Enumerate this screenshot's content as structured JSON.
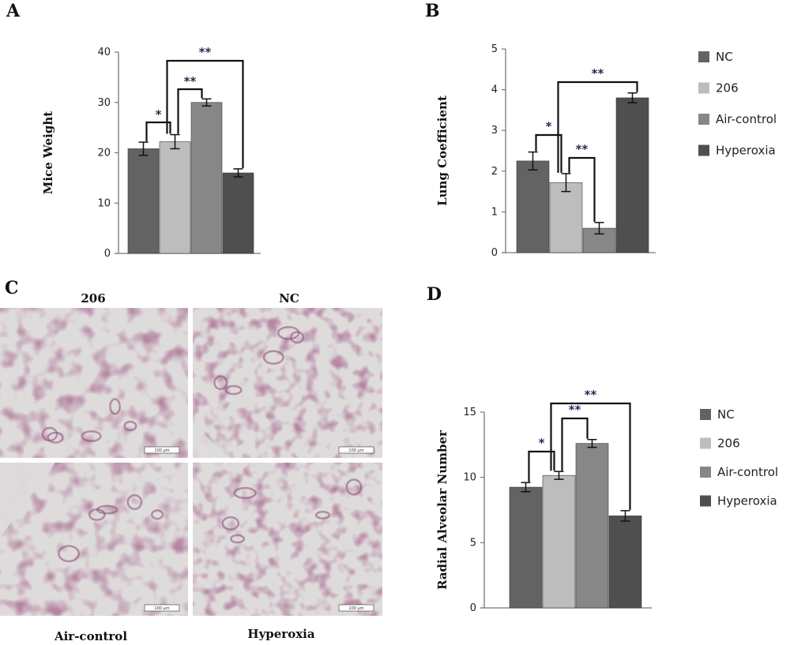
{
  "figure": {
    "panels": {
      "a": "A",
      "b": "B",
      "c": "C",
      "d": "D"
    }
  },
  "legend": {
    "items": [
      {
        "label": "NC",
        "color": "#636363"
      },
      {
        "label": "206",
        "color": "#bdbdbd"
      },
      {
        "label": "Air-control",
        "color": "#878787"
      },
      {
        "label": "Hyperoxia",
        "color": "#4f4f4f"
      }
    ]
  },
  "micrographs": {
    "labels": [
      "206",
      "NC",
      "Air-control",
      "Hyperoxia"
    ],
    "scalebar": "100 µm",
    "tissue_color": "#b27f9e",
    "airspace_color": "#dedbdb"
  },
  "chart_data": [
    {
      "panel": "A",
      "type": "bar",
      "ylabel": "Mice Weight",
      "xlabel": "",
      "ylim": [
        0,
        40
      ],
      "yticks": [
        0,
        10,
        20,
        30,
        40
      ],
      "categories": [
        "NC",
        "206",
        "Air-control",
        "Hyperoxia"
      ],
      "values": [
        20.8,
        22.2,
        30.0,
        16.0
      ],
      "errors": [
        1.3,
        1.4,
        0.7,
        0.8
      ],
      "significance": [
        {
          "from": 0,
          "to": 1,
          "label": "*"
        },
        {
          "from": 1,
          "to": 2,
          "label": "**"
        },
        {
          "from": 1,
          "to": 3,
          "label": "**"
        }
      ]
    },
    {
      "panel": "B",
      "type": "bar",
      "ylabel": "Lung Coefficient",
      "xlabel": "",
      "ylim": [
        0,
        5
      ],
      "yticks": [
        0,
        1,
        2,
        3,
        4,
        5
      ],
      "categories": [
        "NC",
        "206",
        "Air-control",
        "Hyperoxia"
      ],
      "values": [
        2.25,
        1.72,
        0.6,
        3.8
      ],
      "errors": [
        0.22,
        0.22,
        0.14,
        0.12
      ],
      "significance": [
        {
          "from": 0,
          "to": 1,
          "label": "*"
        },
        {
          "from": 1,
          "to": 2,
          "label": "**"
        },
        {
          "from": 1,
          "to": 3,
          "label": "**"
        }
      ]
    },
    {
      "panel": "D",
      "type": "bar",
      "ylabel": "Radial Alveolar Number",
      "xlabel": "",
      "ylim": [
        0,
        15
      ],
      "yticks": [
        0,
        5,
        10,
        15
      ],
      "categories": [
        "NC",
        "206",
        "Air-control",
        "Hyperoxia"
      ],
      "values": [
        9.25,
        10.15,
        12.6,
        7.05
      ],
      "errors": [
        0.35,
        0.3,
        0.3,
        0.4
      ],
      "significance": [
        {
          "from": 0,
          "to": 1,
          "label": "*"
        },
        {
          "from": 1,
          "to": 2,
          "label": "**"
        },
        {
          "from": 1,
          "to": 3,
          "label": "**"
        }
      ]
    }
  ]
}
